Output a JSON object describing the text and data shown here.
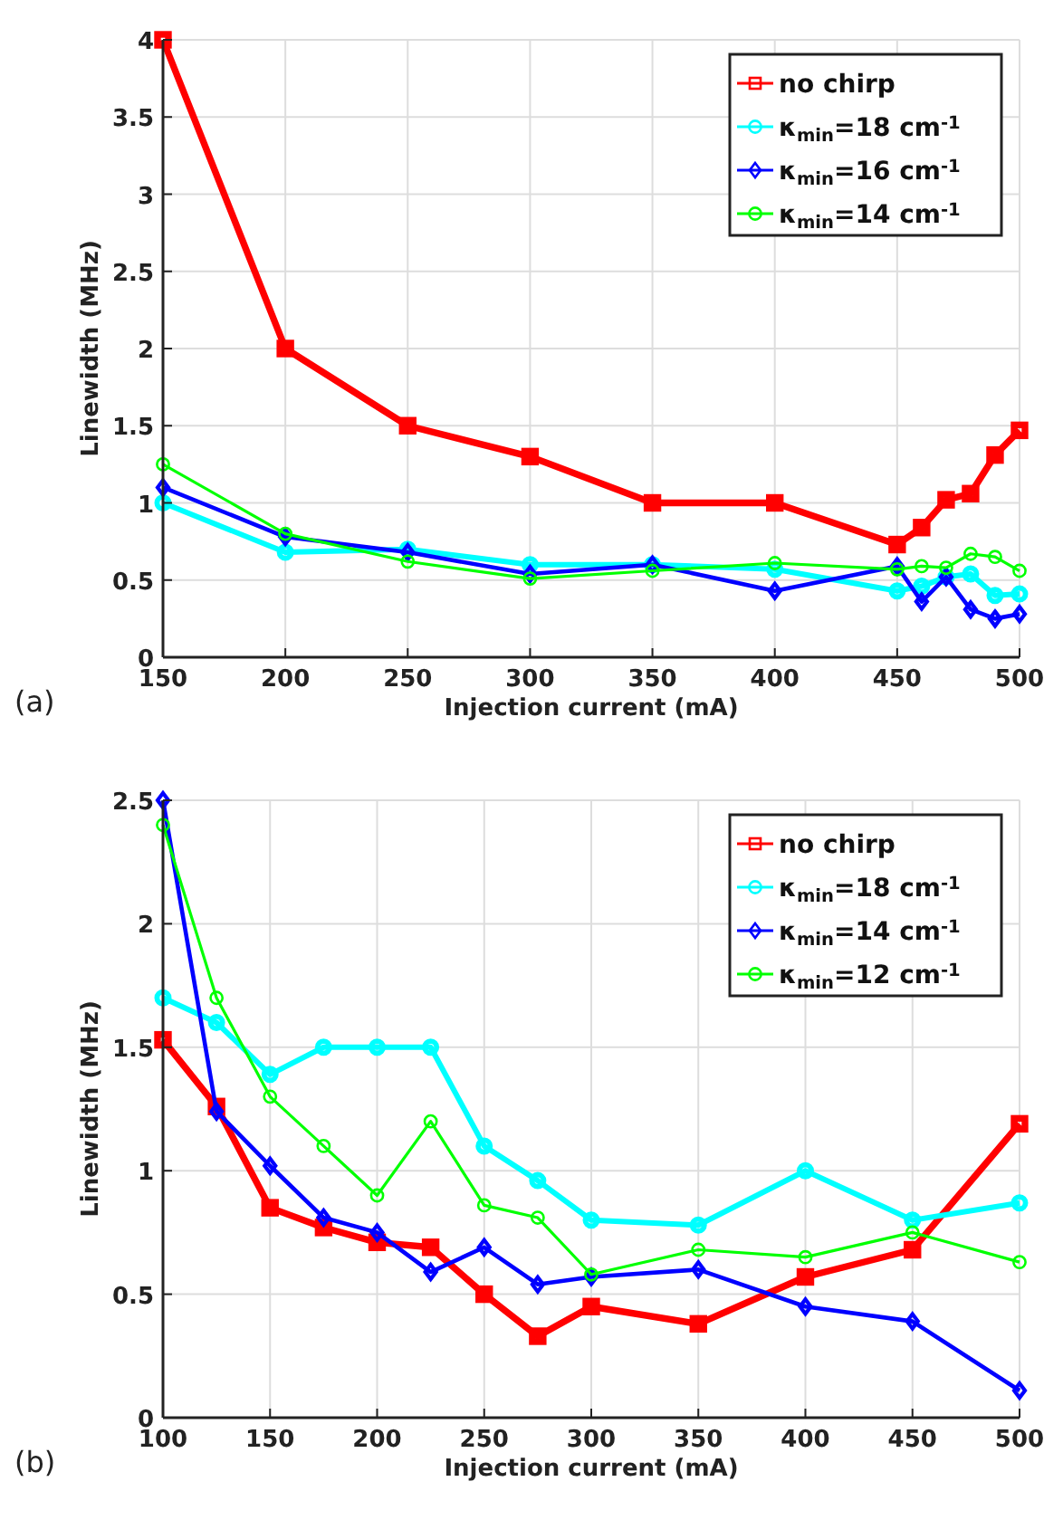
{
  "chart_data": [
    {
      "type": "line",
      "xlabel": "Injection current (mA)",
      "ylabel": "Linewidth (MHz)",
      "annotations": [
        "(a)"
      ],
      "x": [
        150,
        200,
        250,
        300,
        350,
        400,
        450,
        460,
        470,
        480,
        490,
        500
      ],
      "xlim": [
        150,
        500
      ],
      "xticks": [
        150,
        200,
        250,
        300,
        350,
        400,
        450,
        500
      ],
      "ylim": [
        0,
        4
      ],
      "yticks": [
        0,
        0.5,
        1,
        1.5,
        2,
        2.5,
        3,
        3.5,
        4
      ],
      "grid": true,
      "legend": "top right",
      "line_style": "solid",
      "series": [
        {
          "name": "no chirp",
          "color": "#ff0000",
          "marker": "square",
          "values": [
            4,
            2,
            1.5,
            1.3,
            1,
            1,
            0.73,
            0.84,
            1.02,
            1.06,
            1.31,
            1.47
          ]
        },
        {
          "name": "κ$_{min}$=18 cm$^{-1}$",
          "color": "#00ffff",
          "marker": "circle",
          "values": [
            1,
            0.68,
            0.7,
            0.6,
            0.6,
            0.57,
            0.43,
            0.46,
            0.52,
            0.54,
            0.4,
            0.41
          ]
        },
        {
          "name": "κ$_{min}$=16 cm$^{-1}$",
          "color": "#0000ff",
          "marker": "diamond",
          "values": [
            1.1,
            0.78,
            0.68,
            0.54,
            0.6,
            0.43,
            0.59,
            0.36,
            0.52,
            0.31,
            0.25,
            0.28
          ]
        },
        {
          "name": "κ$_{min}$=14 cm$^{-1}$",
          "color": "#00ff00",
          "marker": "circle",
          "values": [
            1.25,
            0.8,
            0.62,
            0.51,
            0.56,
            0.61,
            0.57,
            0.59,
            0.58,
            0.67,
            0.65,
            0.56
          ]
        }
      ]
    },
    {
      "type": "line",
      "xlabel": "Injection current (mA)",
      "ylabel": "Linewidth (MHz)",
      "annotations": [
        "(b)"
      ],
      "x": [
        100,
        125,
        150,
        175,
        200,
        225,
        250,
        275,
        300,
        350,
        400,
        450,
        500
      ],
      "xlim": [
        100,
        500
      ],
      "xticks": [
        100,
        150,
        200,
        250,
        300,
        350,
        400,
        450,
        500
      ],
      "ylim": [
        0,
        2.5
      ],
      "yticks": [
        0,
        0.5,
        1,
        1.5,
        2,
        2.5
      ],
      "grid": true,
      "legend": "top right",
      "line_style": "solid",
      "series": [
        {
          "name": "no chirp",
          "color": "#ff0000",
          "marker": "square",
          "values": [
            1.53,
            1.26,
            0.85,
            0.77,
            0.71,
            0.69,
            0.5,
            0.33,
            0.45,
            0.38,
            0.57,
            0.68,
            1.19
          ]
        },
        {
          "name": "κ$_{min}$=18 cm$^{-1}$",
          "color": "#00ffff",
          "marker": "circle",
          "values": [
            1.7,
            1.6,
            1.39,
            1.5,
            1.5,
            1.5,
            1.1,
            0.96,
            0.8,
            0.78,
            1,
            0.8,
            0.87
          ]
        },
        {
          "name": "κ$_{min}$=14 cm$^{-1}$",
          "color": "#0000ff",
          "marker": "diamond",
          "values": [
            2.5,
            1.24,
            1.02,
            0.81,
            0.75,
            0.59,
            0.69,
            0.54,
            0.57,
            0.6,
            0.45,
            0.39,
            0.11
          ]
        },
        {
          "name": "κ$_{min}$=12 cm$^{-1}$",
          "color": "#00ff00",
          "marker": "circle",
          "values": [
            2.4,
            1.7,
            1.3,
            1.1,
            0.9,
            1.2,
            0.86,
            0.81,
            0.58,
            0.68,
            0.65,
            0.75,
            0.63
          ]
        }
      ]
    }
  ]
}
